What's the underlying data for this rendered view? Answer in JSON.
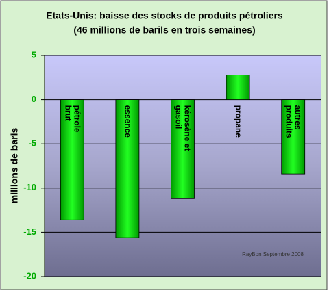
{
  "chart_data": {
    "type": "bar",
    "title": "Etats-Unis: baisse des stocks de produits pétroliers",
    "subtitle": "(46 millions de barils en trois semaines)",
    "y_label": "millions de baris",
    "annotation": "RayBon Septembre 2008",
    "categories": [
      "pétrole brut",
      "essence",
      "kérosène et gasoil",
      "propane",
      "autres produits"
    ],
    "values": [
      -13.6,
      -15.6,
      -11.2,
      2.8,
      -8.4
    ],
    "color": "#00ee00",
    "ylim": [
      -20,
      5
    ],
    "yticks": [
      -20,
      -15,
      -10,
      -5,
      0,
      5
    ],
    "grid": true
  }
}
